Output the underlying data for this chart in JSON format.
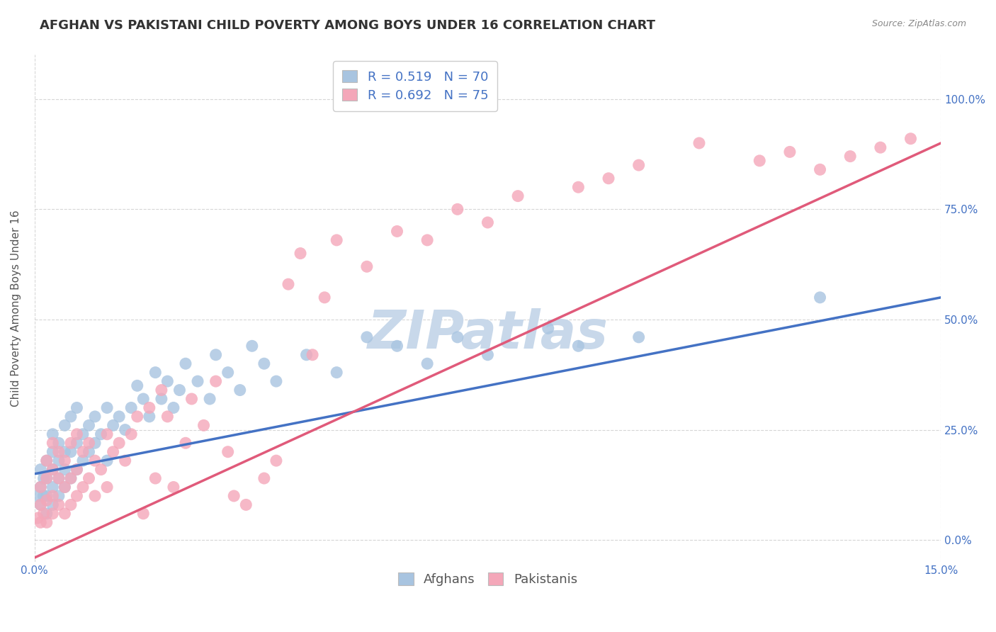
{
  "title": "AFGHAN VS PAKISTANI CHILD POVERTY AMONG BOYS UNDER 16 CORRELATION CHART",
  "source": "Source: ZipAtlas.com",
  "ylabel": "Child Poverty Among Boys Under 16",
  "xlim": [
    0.0,
    0.15
  ],
  "ylim": [
    -0.05,
    1.1
  ],
  "yticks": [
    0.0,
    0.25,
    0.5,
    0.75,
    1.0
  ],
  "ytick_labels_right": [
    "0.0%",
    "25.0%",
    "50.0%",
    "75.0%",
    "100.0%"
  ],
  "xticks": [
    0.0,
    0.15
  ],
  "xtick_labels": [
    "0.0%",
    "15.0%"
  ],
  "legend_labels": [
    "Afghans",
    "Pakistanis"
  ],
  "afghan_R": 0.519,
  "afghan_N": 70,
  "pakistani_R": 0.692,
  "pakistani_N": 75,
  "afghan_color": "#a8c4e0",
  "pakistani_color": "#f4a7b9",
  "afghan_line_color": "#4472c4",
  "pakistani_line_color": "#e05a7a",
  "background_color": "#ffffff",
  "watermark": "ZIPatlas",
  "watermark_color": "#c8d8ea",
  "grid_color": "#cccccc",
  "title_fontsize": 13,
  "axis_label_fontsize": 11,
  "tick_fontsize": 11,
  "legend_fontsize": 13,
  "afghan_line_x0": 0.0,
  "afghan_line_y0": 0.15,
  "afghan_line_x1": 0.15,
  "afghan_line_y1": 0.55,
  "pakistani_line_x0": 0.0,
  "pakistani_line_y0": -0.04,
  "pakistani_line_x1": 0.15,
  "pakistani_line_y1": 0.9,
  "afghan_scatter_x": [
    0.0005,
    0.001,
    0.001,
    0.001,
    0.0015,
    0.0015,
    0.002,
    0.002,
    0.002,
    0.002,
    0.003,
    0.003,
    0.003,
    0.003,
    0.003,
    0.004,
    0.004,
    0.004,
    0.004,
    0.005,
    0.005,
    0.005,
    0.005,
    0.006,
    0.006,
    0.006,
    0.007,
    0.007,
    0.007,
    0.008,
    0.008,
    0.009,
    0.009,
    0.01,
    0.01,
    0.011,
    0.012,
    0.012,
    0.013,
    0.014,
    0.015,
    0.016,
    0.017,
    0.018,
    0.019,
    0.02,
    0.021,
    0.022,
    0.023,
    0.024,
    0.025,
    0.027,
    0.029,
    0.03,
    0.032,
    0.034,
    0.036,
    0.038,
    0.04,
    0.045,
    0.05,
    0.055,
    0.06,
    0.065,
    0.07,
    0.075,
    0.085,
    0.09,
    0.1,
    0.13
  ],
  "afghan_scatter_y": [
    0.1,
    0.08,
    0.12,
    0.16,
    0.1,
    0.14,
    0.06,
    0.1,
    0.14,
    0.18,
    0.08,
    0.12,
    0.16,
    0.2,
    0.24,
    0.1,
    0.14,
    0.18,
    0.22,
    0.12,
    0.16,
    0.2,
    0.26,
    0.14,
    0.2,
    0.28,
    0.16,
    0.22,
    0.3,
    0.18,
    0.24,
    0.2,
    0.26,
    0.22,
    0.28,
    0.24,
    0.18,
    0.3,
    0.26,
    0.28,
    0.25,
    0.3,
    0.35,
    0.32,
    0.28,
    0.38,
    0.32,
    0.36,
    0.3,
    0.34,
    0.4,
    0.36,
    0.32,
    0.42,
    0.38,
    0.34,
    0.44,
    0.4,
    0.36,
    0.42,
    0.38,
    0.46,
    0.44,
    0.4,
    0.46,
    0.42,
    0.48,
    0.44,
    0.46,
    0.55
  ],
  "pakistani_scatter_x": [
    0.0005,
    0.001,
    0.001,
    0.001,
    0.0015,
    0.002,
    0.002,
    0.002,
    0.002,
    0.003,
    0.003,
    0.003,
    0.003,
    0.004,
    0.004,
    0.004,
    0.005,
    0.005,
    0.005,
    0.006,
    0.006,
    0.006,
    0.007,
    0.007,
    0.007,
    0.008,
    0.008,
    0.009,
    0.009,
    0.01,
    0.01,
    0.011,
    0.012,
    0.012,
    0.013,
    0.014,
    0.015,
    0.016,
    0.017,
    0.018,
    0.019,
    0.02,
    0.021,
    0.022,
    0.023,
    0.025,
    0.026,
    0.028,
    0.03,
    0.032,
    0.033,
    0.035,
    0.038,
    0.04,
    0.042,
    0.044,
    0.046,
    0.048,
    0.05,
    0.055,
    0.06,
    0.065,
    0.07,
    0.075,
    0.08,
    0.09,
    0.095,
    0.1,
    0.11,
    0.12,
    0.125,
    0.13,
    0.135,
    0.14,
    0.145
  ],
  "pakistani_scatter_y": [
    0.05,
    0.04,
    0.08,
    0.12,
    0.06,
    0.04,
    0.09,
    0.14,
    0.18,
    0.06,
    0.1,
    0.16,
    0.22,
    0.08,
    0.14,
    0.2,
    0.06,
    0.12,
    0.18,
    0.08,
    0.14,
    0.22,
    0.1,
    0.16,
    0.24,
    0.12,
    0.2,
    0.14,
    0.22,
    0.1,
    0.18,
    0.16,
    0.12,
    0.24,
    0.2,
    0.22,
    0.18,
    0.24,
    0.28,
    0.06,
    0.3,
    0.14,
    0.34,
    0.28,
    0.12,
    0.22,
    0.32,
    0.26,
    0.36,
    0.2,
    0.1,
    0.08,
    0.14,
    0.18,
    0.58,
    0.65,
    0.42,
    0.55,
    0.68,
    0.62,
    0.7,
    0.68,
    0.75,
    0.72,
    0.78,
    0.8,
    0.82,
    0.85,
    0.9,
    0.86,
    0.88,
    0.84,
    0.87,
    0.89,
    0.91
  ]
}
